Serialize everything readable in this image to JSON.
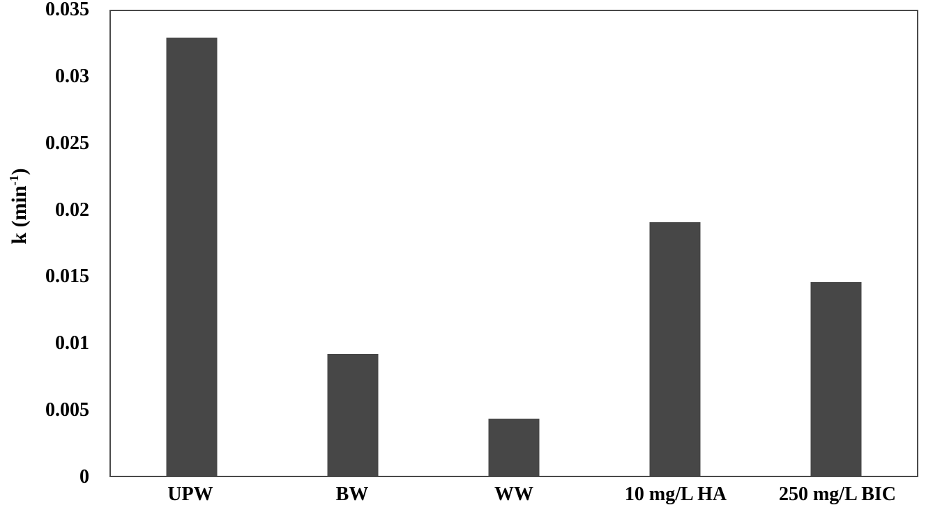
{
  "chart_data": {
    "type": "bar",
    "title": "",
    "xlabel": "",
    "ylabel": "k (min⁻¹)",
    "ylabel_parts": {
      "prefix": "k (min",
      "sup": "-1",
      "suffix": ")"
    },
    "categories": [
      "UPW",
      "BW",
      "WW",
      "10 mg/L HA",
      "250 mg/L BIC"
    ],
    "values": [
      0.033,
      0.0092,
      0.0043,
      0.0191,
      0.0146
    ],
    "ylim": [
      0,
      0.035
    ],
    "yticks": [
      0,
      0.005,
      0.01,
      0.015,
      0.02,
      0.025,
      0.03,
      0.035
    ],
    "ytick_labels": [
      "0",
      "0.005",
      "0.01",
      "0.015",
      "0.02",
      "0.025",
      "0.03",
      "0.035"
    ],
    "grid": false,
    "legend": "none",
    "bar_color": "#474747",
    "axis_color": "#4a4a4a",
    "text_color": "#000000",
    "background": "#ffffff"
  }
}
